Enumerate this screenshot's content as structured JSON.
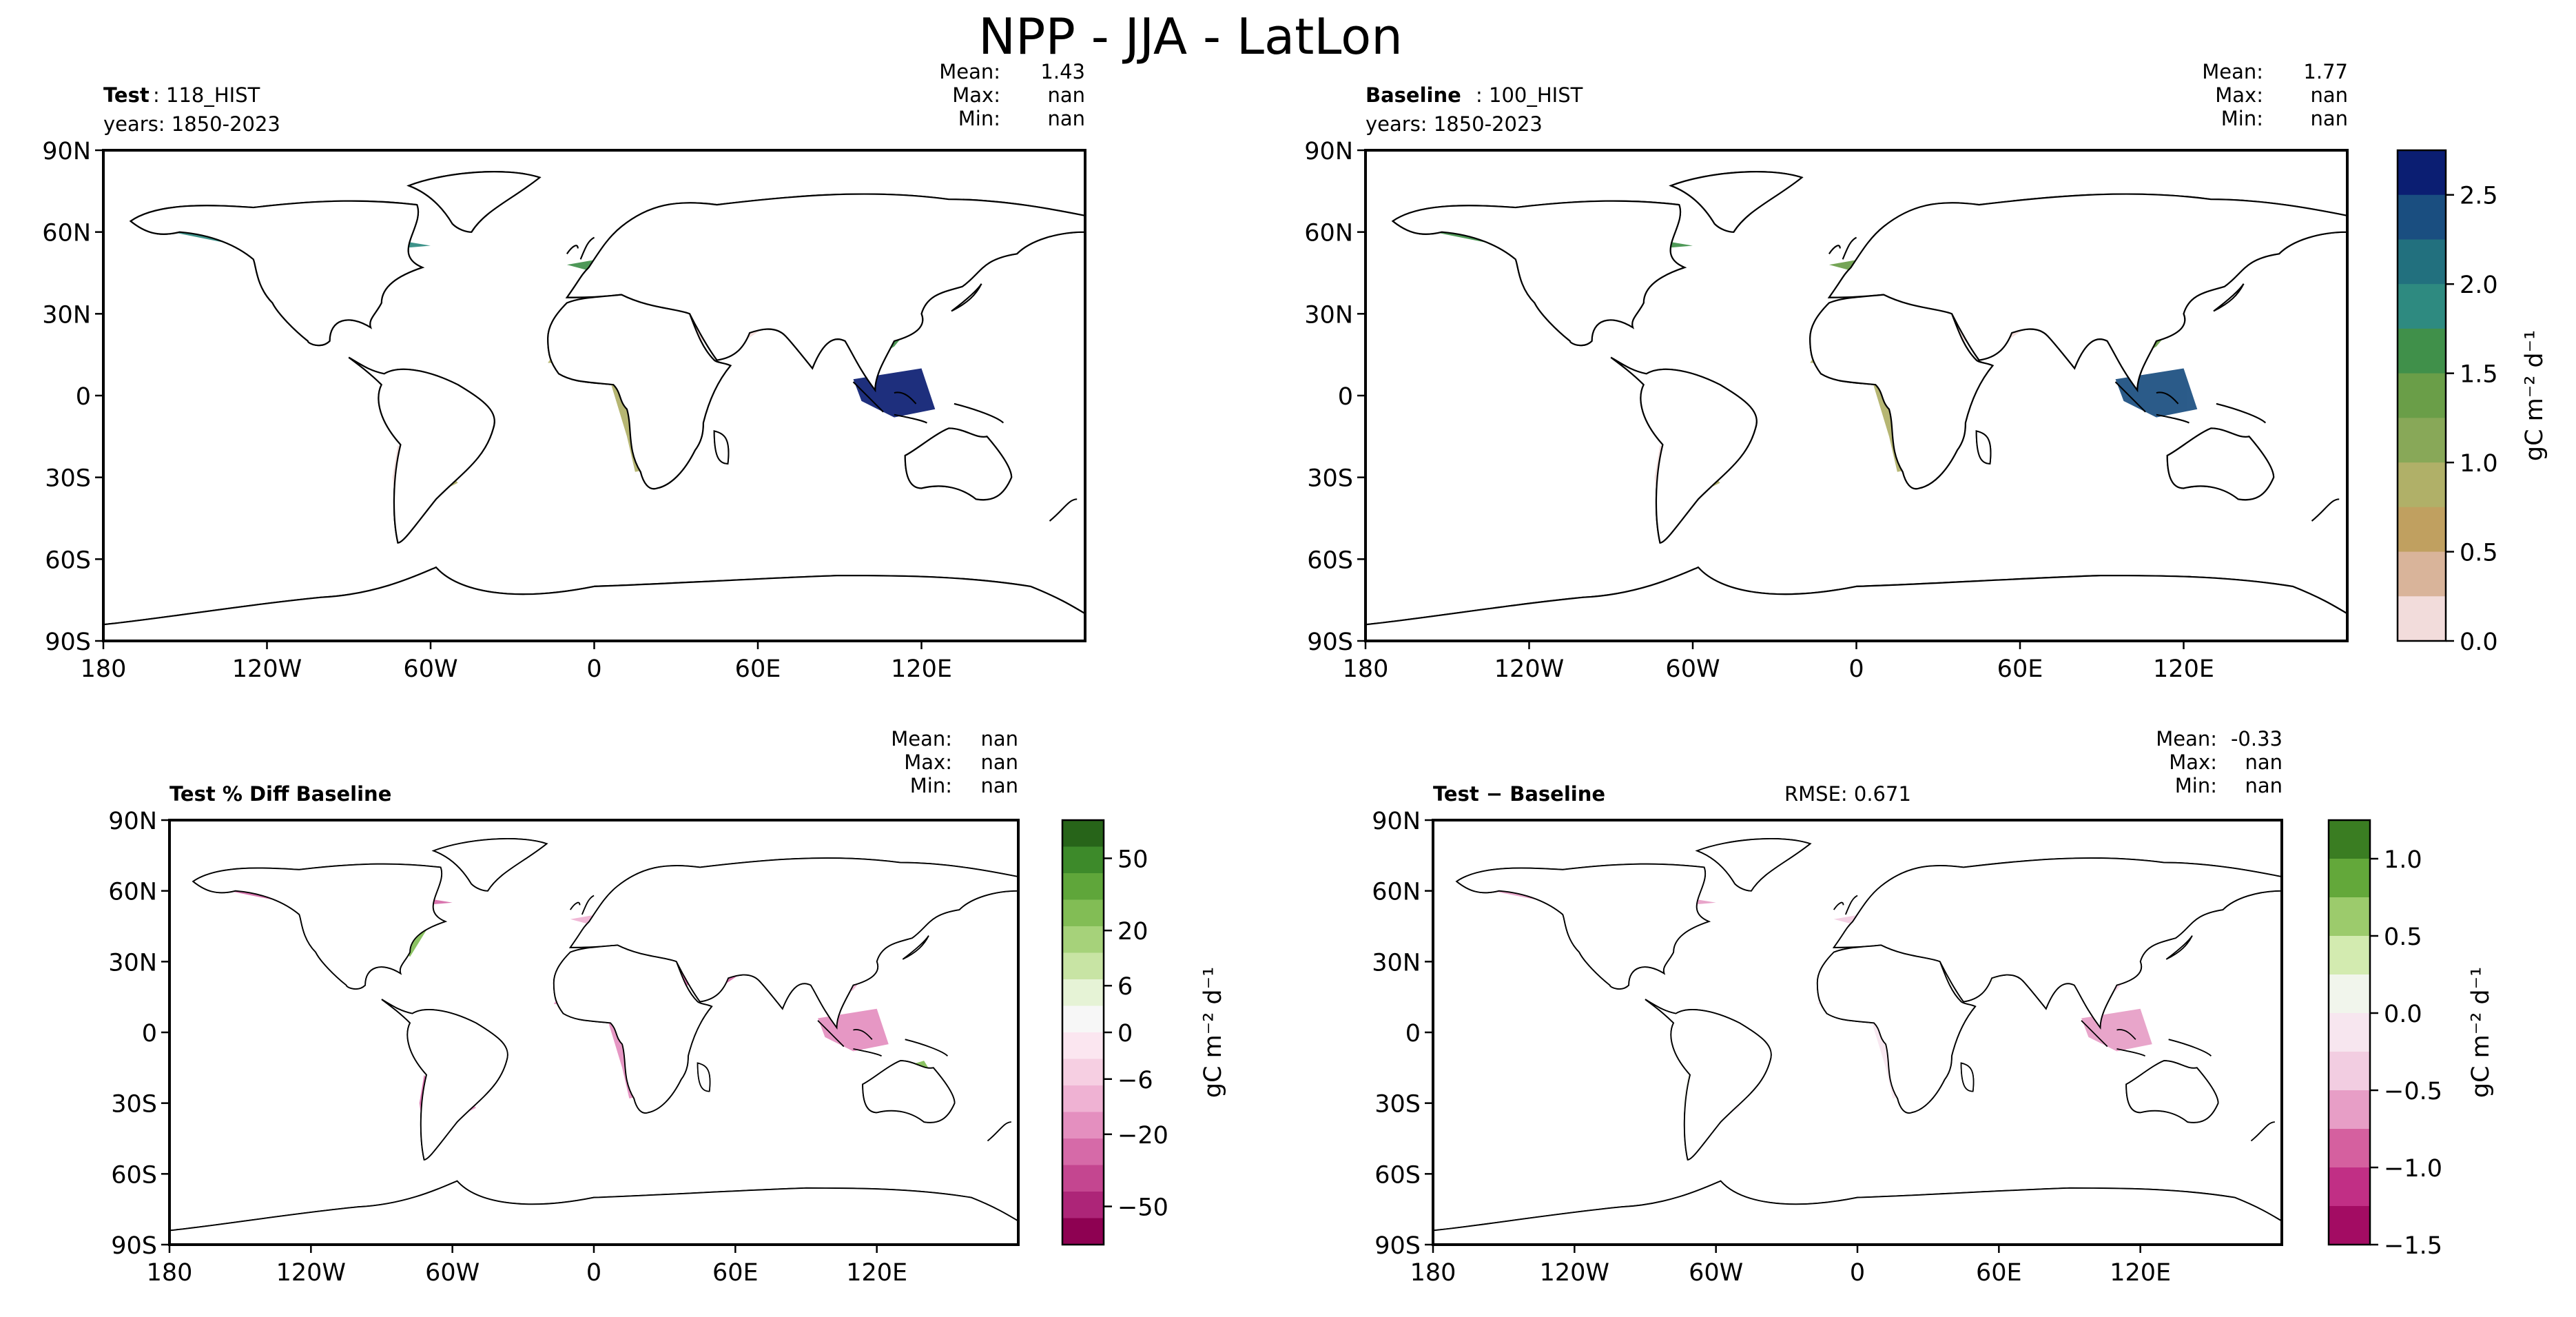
{
  "figure": {
    "suptitle": "NPP - JJA - LatLon"
  },
  "chart_data": [
    {
      "type": "heatmap",
      "panel": "test",
      "title_bold": "Test",
      "title_rest": ": 118_HIST",
      "subtitle": "years: 1850-2023",
      "stats": [
        {
          "label": "Mean:",
          "value": "1.43"
        },
        {
          "label": "Max:",
          "value": "nan"
        },
        {
          "label": "Min:",
          "value": "nan"
        }
      ],
      "xticks": [
        "180",
        "120W",
        "60W",
        "0",
        "60E",
        "120E"
      ],
      "yticks": [
        "90N",
        "60N",
        "30N",
        "0",
        "30S",
        "60S",
        "90S"
      ]
    },
    {
      "type": "heatmap",
      "panel": "baseline",
      "title_bold": "Baseline",
      "title_rest": ": 100_HIST",
      "subtitle": "years: 1850-2023",
      "stats": [
        {
          "label": "Mean:",
          "value": "1.77"
        },
        {
          "label": "Max:",
          "value": "nan"
        },
        {
          "label": "Min:",
          "value": "nan"
        }
      ],
      "xticks": [
        "180",
        "120W",
        "60W",
        "0",
        "60E",
        "120E"
      ],
      "yticks": [
        "90N",
        "60N",
        "30N",
        "0",
        "30S",
        "60S",
        "90S"
      ],
      "colorbar": {
        "label": "gC m⁻² d⁻¹",
        "ticks": [
          "0.0",
          "0.5",
          "1.0",
          "1.5",
          "2.0",
          "2.5"
        ],
        "colors": [
          "#f2dcdb",
          "#d9b49a",
          "#c0a060",
          "#b0b068",
          "#88a858",
          "#6a9e48",
          "#40904a",
          "#2e8a80",
          "#22707e",
          "#1a4e80",
          "#0b1e72"
        ]
      }
    },
    {
      "type": "heatmap",
      "panel": "pct_diff",
      "title": "Test % Diff Baseline",
      "stats": [
        {
          "label": "Mean:",
          "value": "nan"
        },
        {
          "label": "Max:",
          "value": "nan"
        },
        {
          "label": "Min:",
          "value": "nan"
        }
      ],
      "xticks": [
        "180",
        "120W",
        "60W",
        "0",
        "60E",
        "120E"
      ],
      "yticks": [
        "90N",
        "60N",
        "30N",
        "0",
        "30S",
        "60S",
        "90S"
      ],
      "colorbar": {
        "label": "gC m⁻² d⁻¹",
        "ticks": [
          "50",
          "20",
          "6",
          "0",
          "−6",
          "−20",
          "−50"
        ],
        "colors": [
          "#276419",
          "#3d8a2a",
          "#5fa63a",
          "#82bd55",
          "#a6d27a",
          "#c8e4a4",
          "#e6f3d6",
          "#f7f7f7",
          "#fbe6f0",
          "#f6cfe2",
          "#efb2d3",
          "#e48fbf",
          "#d66aa8",
          "#c44690",
          "#ad2578",
          "#8e0152"
        ]
      }
    },
    {
      "type": "heatmap",
      "panel": "abs_diff",
      "title": "Test − Baseline",
      "rmse": "RMSE: 0.671",
      "stats": [
        {
          "label": "Mean:",
          "value": "-0.33"
        },
        {
          "label": "Max:",
          "value": "nan"
        },
        {
          "label": "Min:",
          "value": "nan"
        }
      ],
      "xticks": [
        "180",
        "120W",
        "60W",
        "0",
        "60E",
        "120E"
      ],
      "yticks": [
        "90N",
        "60N",
        "30N",
        "0",
        "30S",
        "60S",
        "90S"
      ],
      "colorbar": {
        "label": "gC m⁻² d⁻¹",
        "ticks": [
          "1.0",
          "0.5",
          "0.0",
          "−0.5",
          "−1.0",
          "−1.5"
        ],
        "colors": [
          "#3a7d22",
          "#63a83a",
          "#9ccb6c",
          "#d3ebb0",
          "#f1f5ec",
          "#f7e6ef",
          "#f2cde1",
          "#e79ec6",
          "#d5609f",
          "#c12f85",
          "#a30c63"
        ]
      }
    }
  ]
}
